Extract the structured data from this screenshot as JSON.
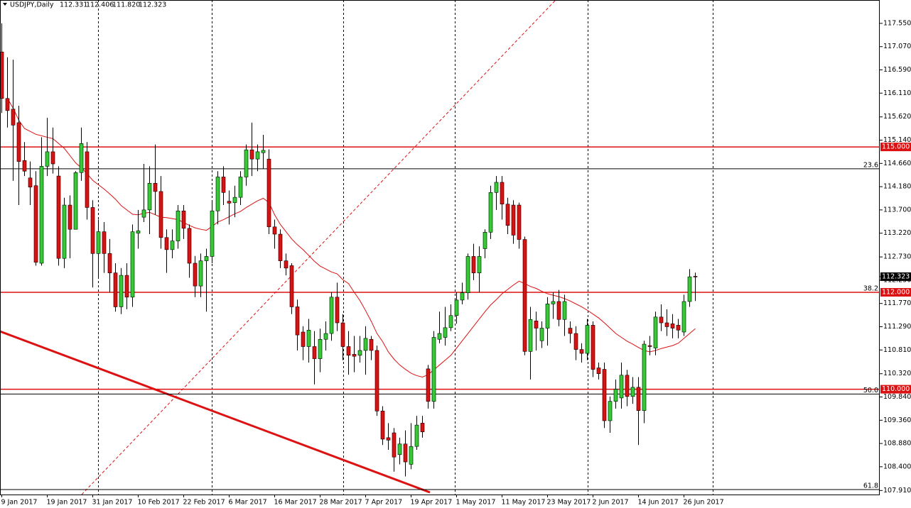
{
  "chart_data": {
    "type": "candlestick",
    "title": "USDJPY,Daily",
    "header": {
      "values": [
        112.331,
        112.406,
        111.82,
        112.323
      ],
      "value_labels": [
        "112.331",
        "112.406",
        "111.820",
        "112.323"
      ]
    },
    "categories": [
      "9 Jan 2017",
      null,
      null,
      null,
      null,
      null,
      null,
      null,
      "19 Jan 2017",
      null,
      null,
      null,
      null,
      null,
      null,
      null,
      "31 Jan 2017",
      null,
      null,
      null,
      null,
      null,
      null,
      null,
      "10 Feb 2017",
      null,
      null,
      null,
      null,
      null,
      null,
      null,
      "22 Feb 2017",
      null,
      null,
      null,
      null,
      null,
      null,
      null,
      "6 Mar 2017",
      null,
      null,
      null,
      null,
      null,
      null,
      null,
      "16 Mar 2017",
      null,
      null,
      null,
      null,
      null,
      null,
      null,
      "28 Mar 2017",
      null,
      null,
      null,
      null,
      null,
      null,
      null,
      "7 Apr 2017",
      null,
      null,
      null,
      null,
      null,
      null,
      null,
      "19 Apr 2017",
      null,
      null,
      null,
      null,
      null,
      null,
      null,
      "1 May 2017",
      null,
      null,
      null,
      null,
      null,
      null,
      null,
      "11 May 2017",
      null,
      null,
      null,
      null,
      null,
      null,
      null,
      "23 May 2017",
      null,
      null,
      null,
      null,
      null,
      null,
      null,
      "2 Jun 2017",
      null,
      null,
      null,
      null,
      null,
      null,
      null,
      "14 Jun 2017",
      null,
      null,
      null,
      null,
      null,
      null,
      null,
      "26 Jun 2017",
      null,
      null
    ],
    "open": [
      116.96,
      116.0,
      115.78,
      115.5,
      114.72,
      114.36,
      114.2,
      112.6,
      114.6,
      114.9,
      114.4,
      112.7,
      113.8,
      113.3,
      114.47,
      114.9,
      113.75,
      112.8,
      113.25,
      112.8,
      112.4,
      111.7,
      112.35,
      111.9,
      113.22,
      113.55,
      113.7,
      114.25,
      114.08,
      113.13,
      112.88,
      113.06,
      113.68,
      113.32,
      112.6,
      112.13,
      112.65,
      112.74,
      113.68,
      114.38,
      113.88,
      113.85,
      113.96,
      114.38,
      114.94,
      114.75,
      114.88,
      114.75,
      113.35,
      113.2,
      112.65,
      112.55,
      111.7,
      111.18,
      110.88,
      110.88,
      110.63,
      111.03,
      111.15,
      111.9,
      111.37,
      110.88,
      110.72,
      110.7,
      110.8,
      111.03,
      110.8,
      109.55,
      109.0,
      109.1,
      108.65,
      108.87,
      108.45,
      108.82,
      109.3,
      110.42,
      109.75,
      111.03,
      111.07,
      111.27,
      111.52,
      111.84,
      111.99,
      112.74,
      112.4,
      112.9,
      113.24,
      114.06,
      114.27,
      113.82,
      113.8,
      113.8,
      113.09,
      110.78,
      111.41,
      111.0,
      111.26,
      111.76,
      111.81,
      111.44,
      111.26,
      111.15,
      110.82,
      110.74,
      111.32,
      110.44,
      110.41,
      109.35,
      109.75,
      109.82,
      110.29,
      109.85,
      110.04,
      109.56,
      110.9,
      110.85,
      111.49,
      111.37,
      111.35,
      111.32,
      111.18,
      111.81,
      112.331
    ],
    "high": [
      117.55,
      116.85,
      116.8,
      115.85,
      115.1,
      114.7,
      114.5,
      115.2,
      115.6,
      115.4,
      114.6,
      113.95,
      114.0,
      114.5,
      115.4,
      115.1,
      113.9,
      113.5,
      113.45,
      113.1,
      112.6,
      112.5,
      112.6,
      113.4,
      113.7,
      114.65,
      114.6,
      115.05,
      114.4,
      113.3,
      113.3,
      113.8,
      113.8,
      113.4,
      112.75,
      112.8,
      112.9,
      113.9,
      114.5,
      114.6,
      114.1,
      114.2,
      114.5,
      115.05,
      115.5,
      115.05,
      115.25,
      114.95,
      113.5,
      113.3,
      112.8,
      112.6,
      111.85,
      111.3,
      111.45,
      111.2,
      111.25,
      111.4,
      112.0,
      112.2,
      111.55,
      111.2,
      111.1,
      111.1,
      111.3,
      111.1,
      110.9,
      109.65,
      109.3,
      109.2,
      109.0,
      109.15,
      109.3,
      109.45,
      109.45,
      110.5,
      111.2,
      111.6,
      111.7,
      111.75,
      112.0,
      112.2,
      112.8,
      113.0,
      112.95,
      113.3,
      114.2,
      114.4,
      114.4,
      113.95,
      113.9,
      113.85,
      113.15,
      111.7,
      111.6,
      111.4,
      111.9,
      112.0,
      112.05,
      111.95,
      111.4,
      111.3,
      110.95,
      111.45,
      111.4,
      110.55,
      110.55,
      109.85,
      110.2,
      110.55,
      110.4,
      110.25,
      110.25,
      111.0,
      111.1,
      111.6,
      111.75,
      111.65,
      111.55,
      111.45,
      111.95,
      112.48,
      112.406
    ],
    "low": [
      115.7,
      115.4,
      114.3,
      113.8,
      114.4,
      113.8,
      112.55,
      112.55,
      114.4,
      114.45,
      112.55,
      112.5,
      112.7,
      113.3,
      114.3,
      113.5,
      112.1,
      112.3,
      112.4,
      112.0,
      111.6,
      111.55,
      111.65,
      111.7,
      112.9,
      113.45,
      113.2,
      113.6,
      112.9,
      112.4,
      112.7,
      112.9,
      113.1,
      112.3,
      111.9,
      111.9,
      111.6,
      112.6,
      113.4,
      113.8,
      113.4,
      113.55,
      113.8,
      114.2,
      114.4,
      114.5,
      114.55,
      113.2,
      112.9,
      112.5,
      112.35,
      111.55,
      110.8,
      110.6,
      110.55,
      110.1,
      110.35,
      110.8,
      111.0,
      111.2,
      110.6,
      110.3,
      110.35,
      110.55,
      110.3,
      110.6,
      109.45,
      108.85,
      108.75,
      108.3,
      108.45,
      108.2,
      108.35,
      108.75,
      109.0,
      109.6,
      109.6,
      110.95,
      110.9,
      111.2,
      111.35,
      111.75,
      111.85,
      112.25,
      112.0,
      112.7,
      113.1,
      113.7,
      113.5,
      113.2,
      113.0,
      112.9,
      110.7,
      110.2,
      110.8,
      110.85,
      110.9,
      111.45,
      111.3,
      111.1,
      110.95,
      110.6,
      110.55,
      110.6,
      110.25,
      110.2,
      109.2,
      109.1,
      109.6,
      109.6,
      109.65,
      109.7,
      108.85,
      109.3,
      110.7,
      110.7,
      111.2,
      111.1,
      111.05,
      111.05,
      111.1,
      111.7,
      111.82
    ],
    "close": [
      116.0,
      115.75,
      115.45,
      114.7,
      114.5,
      114.17,
      112.62,
      114.6,
      114.9,
      114.65,
      112.7,
      113.8,
      113.3,
      114.47,
      115.07,
      113.75,
      112.8,
      113.25,
      112.8,
      112.4,
      111.7,
      112.35,
      111.9,
      113.25,
      113.27,
      113.7,
      114.25,
      114.08,
      113.13,
      112.88,
      113.06,
      113.68,
      113.32,
      112.6,
      112.13,
      112.65,
      112.74,
      113.68,
      114.38,
      114.06,
      113.84,
      113.96,
      114.38,
      114.94,
      114.75,
      114.9,
      114.93,
      113.35,
      113.2,
      112.65,
      112.5,
      111.7,
      111.12,
      110.88,
      111.22,
      110.63,
      111.03,
      111.15,
      111.9,
      111.37,
      110.88,
      110.7,
      110.68,
      110.8,
      111.05,
      110.8,
      109.55,
      108.97,
      108.95,
      108.6,
      108.87,
      108.5,
      108.82,
      109.26,
      109.12,
      109.75,
      111.07,
      111.15,
      111.27,
      111.52,
      111.84,
      111.99,
      112.74,
      112.4,
      112.74,
      113.24,
      114.06,
      114.27,
      113.82,
      113.38,
      113.18,
      113.09,
      110.78,
      111.44,
      111.26,
      111.26,
      111.76,
      111.81,
      111.44,
      111.81,
      111.15,
      110.82,
      110.74,
      111.32,
      110.41,
      110.32,
      109.35,
      109.75,
      110.0,
      110.29,
      109.85,
      110.04,
      109.56,
      110.93,
      110.88,
      111.49,
      111.37,
      111.29,
      111.26,
      111.22,
      111.81,
      112.32,
      112.323
    ],
    "up_color": "#33cc33",
    "down_color": "#dd1111",
    "ma": {
      "color": "#dd1111",
      "values": [
        null,
        116.0,
        115.8,
        115.55,
        115.38,
        115.32,
        115.26,
        115.23,
        115.2,
        115.17,
        115.07,
        114.97,
        114.82,
        114.67,
        114.57,
        114.45,
        114.31,
        114.22,
        114.13,
        114.03,
        113.92,
        113.79,
        113.7,
        113.61,
        113.6,
        113.63,
        113.65,
        113.6,
        113.55,
        113.54,
        113.52,
        113.5,
        113.44,
        113.38,
        113.33,
        113.3,
        113.28,
        113.36,
        113.45,
        113.5,
        113.56,
        113.62,
        113.67,
        113.75,
        113.82,
        113.89,
        113.94,
        113.85,
        113.6,
        113.4,
        113.25,
        113.1,
        112.98,
        112.88,
        112.76,
        112.64,
        112.54,
        112.48,
        112.42,
        112.38,
        112.26,
        112.18,
        112.0,
        111.83,
        111.62,
        111.4,
        111.15,
        110.98,
        110.77,
        110.62,
        110.5,
        110.41,
        110.33,
        110.28,
        110.25,
        110.3,
        110.4,
        110.5,
        110.6,
        110.7,
        110.85,
        111.0,
        111.15,
        111.3,
        111.45,
        111.6,
        111.74,
        111.85,
        111.97,
        112.06,
        112.15,
        112.23,
        112.18,
        112.12,
        112.08,
        112.02,
        111.97,
        111.94,
        111.91,
        111.87,
        111.82,
        111.76,
        111.7,
        111.63,
        111.55,
        111.47,
        111.37,
        111.26,
        111.15,
        111.07,
        110.99,
        110.93,
        110.86,
        110.8,
        110.77,
        110.8,
        110.84,
        110.87,
        110.9,
        110.95,
        111.05,
        111.15,
        111.25
      ]
    },
    "hlines": [
      {
        "value": 115,
        "label": "115.000",
        "color": "#dd1111"
      },
      {
        "value": 112,
        "label": "112.000",
        "color": "#dd1111"
      },
      {
        "value": 110,
        "label": "110.000",
        "color": "#dd1111"
      }
    ],
    "fib_levels": [
      {
        "name": "23.6",
        "price": 114.55
      },
      {
        "name": "38.2",
        "price": 112.0
      },
      {
        "name": "50.0",
        "price": 109.9
      },
      {
        "name": "61.8",
        "price": 107.93
      }
    ],
    "last_price": {
      "value": 112.323,
      "label": "112.323"
    },
    "ylim": [
      107.827,
      118.032
    ],
    "yticks": [
      {
        "value": 117.55,
        "label": "117.550"
      },
      {
        "value": 117.07,
        "label": "117.070"
      },
      {
        "value": 116.59,
        "label": "116.590"
      },
      {
        "value": 116.11,
        "label": "116.110"
      },
      {
        "value": 115.62,
        "label": "115.620"
      },
      {
        "value": 115.14,
        "label": "115.140"
      },
      {
        "value": 114.66,
        "label": "114.660"
      },
      {
        "value": 114.18,
        "label": "114.180"
      },
      {
        "value": 113.7,
        "label": "113.700"
      },
      {
        "value": 113.22,
        "label": "113.220"
      },
      {
        "value": 112.73,
        "label": "112.730"
      },
      {
        "value": 112.25,
        "label": "112.250"
      },
      {
        "value": 111.77,
        "label": "111.770"
      },
      {
        "value": 111.29,
        "label": "111.290"
      },
      {
        "value": 110.81,
        "label": "110.810"
      },
      {
        "value": 110.32,
        "label": "110.320"
      },
      {
        "value": 109.84,
        "label": "109.840"
      },
      {
        "value": 109.36,
        "label": "109.360"
      },
      {
        "value": 108.88,
        "label": "108.880"
      },
      {
        "value": 108.4,
        "label": "108.400"
      },
      {
        "value": 107.91,
        "label": "107.910"
      }
    ]
  }
}
